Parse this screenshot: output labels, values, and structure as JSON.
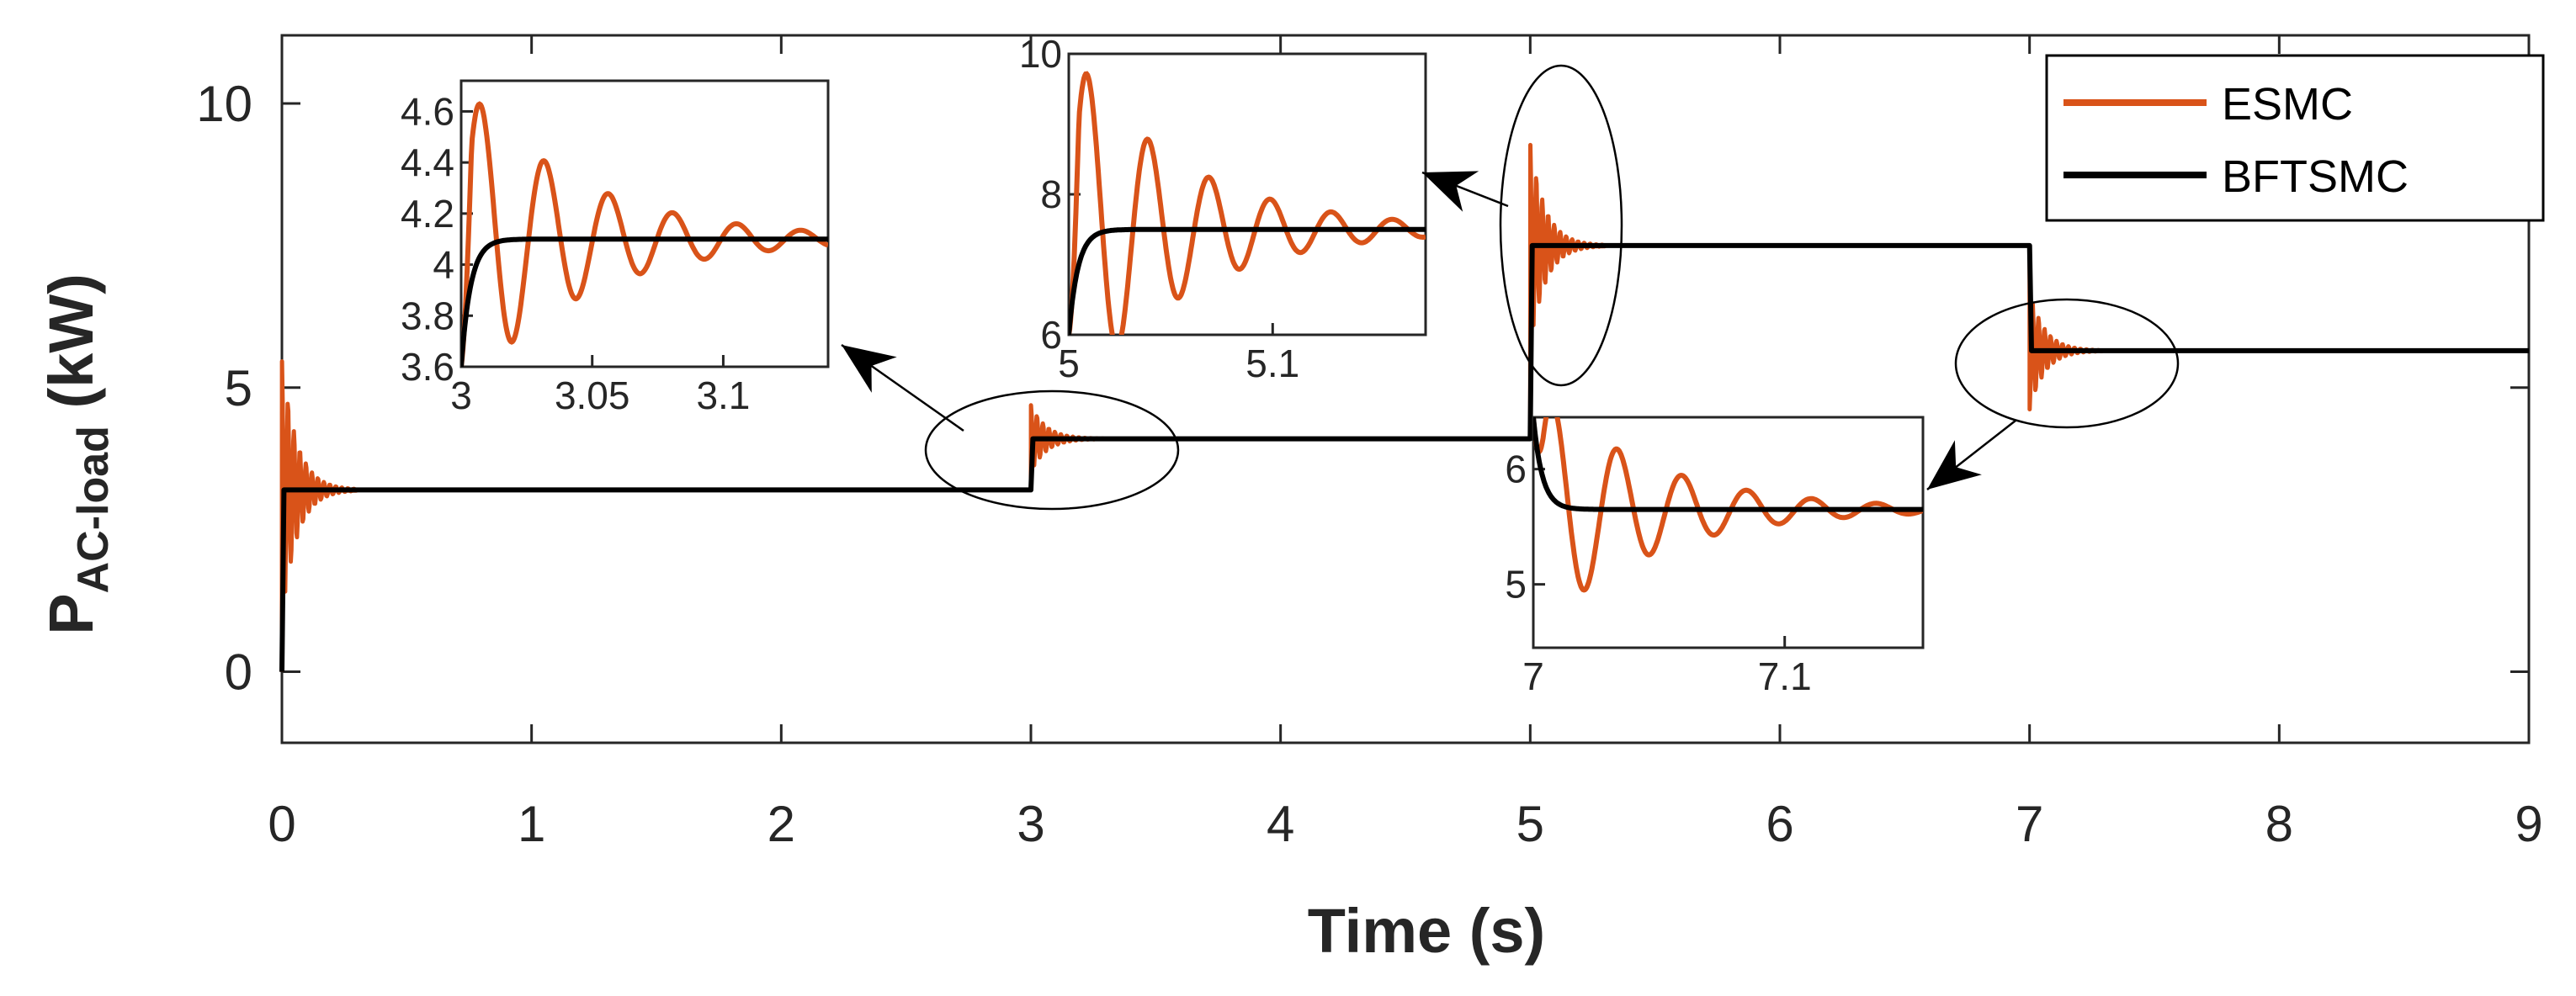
{
  "chart_data": {
    "type": "line",
    "title": "",
    "xlabel": "Time (s)",
    "ylabel_main": "P",
    "ylabel_sub": "AC-load",
    "ylabel_unit": " (kW)",
    "xlim": [
      0,
      9
    ],
    "ylim": [
      -1.25,
      11.2
    ],
    "xticks": [
      "0",
      "1",
      "2",
      "3",
      "4",
      "5",
      "6",
      "7",
      "8",
      "9"
    ],
    "yticks": [
      "0",
      "5",
      "10"
    ],
    "legend_position": "top-right",
    "colors": {
      "ESMC": "#D95319",
      "BFTSMC": "#000000"
    },
    "series": [
      {
        "name": "ESMC",
        "steps": [
          {
            "t": 0,
            "from": 0,
            "to": 3.2,
            "peak": 5.5
          },
          {
            "t": 3,
            "from": 3.2,
            "to": 4.1,
            "peak": 4.7
          },
          {
            "t": 5,
            "from": 4.1,
            "to": 7.5,
            "peak": 9.3
          },
          {
            "t": 7,
            "from": 7.5,
            "to": 5.65,
            "peak": 4.6
          }
        ],
        "end": 9
      },
      {
        "name": "BFTSMC",
        "steps": [
          {
            "t": 0,
            "from": 0,
            "to": 3.2
          },
          {
            "t": 3,
            "from": 3.2,
            "to": 4.1
          },
          {
            "t": 5,
            "from": 4.1,
            "to": 7.5
          },
          {
            "t": 7,
            "from": 7.5,
            "to": 5.65
          }
        ],
        "end": 9
      }
    ],
    "insets": [
      {
        "id": "inset-3s",
        "xlim": [
          3,
          3.14
        ],
        "ylim": [
          3.6,
          4.72
        ],
        "xticks": [
          "3",
          "3.05",
          "3.1"
        ],
        "yticks": [
          "3.6",
          "3.8",
          "4",
          "4.2",
          "4.4",
          "4.6"
        ],
        "xtick_values": [
          3,
          3.05,
          3.1
        ],
        "ytick_values": [
          3.6,
          3.8,
          4.0,
          4.2,
          4.4,
          4.6
        ],
        "base": 3.6,
        "final": 4.1,
        "amp": 0.62,
        "period": 0.0245,
        "tau": 0.045,
        "rise": 0.004
      },
      {
        "id": "inset-5s",
        "xlim": [
          5,
          5.175
        ],
        "ylim": [
          6,
          10
        ],
        "xticks": [
          "5",
          "5.1"
        ],
        "yticks": [
          "6",
          "8",
          "10"
        ],
        "xtick_values": [
          5,
          5.1
        ],
        "ytick_values": [
          6,
          8,
          10
        ],
        "base": 6,
        "final": 7.5,
        "amp": 2.6,
        "period": 0.03,
        "tau": 0.055,
        "rise": 0.005
      },
      {
        "id": "inset-7s",
        "xlim": [
          7,
          7.155
        ],
        "ylim": [
          4.45,
          6.45
        ],
        "xticks": [
          "7",
          "7.1"
        ],
        "yticks": [
          "5",
          "6"
        ],
        "xtick_values": [
          7,
          7.1
        ],
        "ytick_values": [
          5,
          6
        ],
        "base": 6.45,
        "final": 5.65,
        "amp": 1.1,
        "period": 0.0258,
        "tau": 0.045,
        "rise": 0.004
      }
    ]
  }
}
